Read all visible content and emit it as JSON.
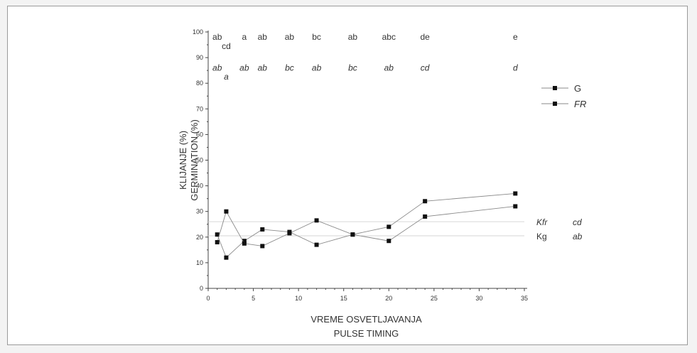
{
  "chart_data": {
    "type": "line",
    "xlabel_lines": [
      "VREME OSVETLJAVANJA",
      "PULSE TIMING"
    ],
    "ylabel_lines": [
      "KLIJANJE (%)",
      "GERMINATION (%)"
    ],
    "xlim": [
      0,
      35
    ],
    "ylim": [
      0,
      100
    ],
    "x_ticks": [
      0,
      5,
      10,
      15,
      20,
      25,
      30,
      35
    ],
    "y_ticks": [
      0,
      10,
      20,
      30,
      40,
      50,
      60,
      70,
      80,
      90,
      100
    ],
    "x": [
      1,
      2,
      4,
      6,
      9,
      12,
      16,
      20,
      24,
      34
    ],
    "series": [
      {
        "name": "G",
        "italic": false,
        "color": "#111111",
        "values": [
          21,
          12,
          18.5,
          23,
          22,
          17,
          21,
          24,
          34,
          37
        ]
      },
      {
        "name": "FR",
        "italic": true,
        "color": "#111111",
        "values": [
          18,
          30,
          17.5,
          16.5,
          21.5,
          26.5,
          21,
          18.5,
          28,
          32
        ]
      }
    ],
    "reference_lines": [
      {
        "label": "Kfr",
        "italic": true,
        "y": 26,
        "letter": "cd"
      },
      {
        "label": "Kg",
        "italic": false,
        "y": 20.5,
        "letter": "ab"
      }
    ],
    "significance_rows": [
      {
        "italic": false,
        "items": [
          {
            "x": 1,
            "text": "ab",
            "y": 98
          },
          {
            "x": 2,
            "text": "cd",
            "y": 94.5
          },
          {
            "x": 4,
            "text": "a",
            "y": 98
          },
          {
            "x": 6,
            "text": "ab",
            "y": 98
          },
          {
            "x": 9,
            "text": "ab",
            "y": 98
          },
          {
            "x": 12,
            "text": "bc",
            "y": 98
          },
          {
            "x": 16,
            "text": "ab",
            "y": 98
          },
          {
            "x": 20,
            "text": "abc",
            "y": 98
          },
          {
            "x": 24,
            "text": "de",
            "y": 98
          },
          {
            "x": 34,
            "text": "e",
            "y": 98
          }
        ]
      },
      {
        "italic": true,
        "items": [
          {
            "x": 1,
            "text": "ab",
            "y": 86
          },
          {
            "x": 2,
            "text": "a",
            "y": 82.5
          },
          {
            "x": 4,
            "text": "ab",
            "y": 86
          },
          {
            "x": 6,
            "text": "ab",
            "y": 86
          },
          {
            "x": 9,
            "text": "bc",
            "y": 86
          },
          {
            "x": 12,
            "text": "ab",
            "y": 86
          },
          {
            "x": 16,
            "text": "bc",
            "y": 86
          },
          {
            "x": 20,
            "text": "ab",
            "y": 86
          },
          {
            "x": 24,
            "text": "cd",
            "y": 86
          },
          {
            "x": 34,
            "text": "d",
            "y": 86
          }
        ]
      }
    ],
    "legend_position": "upper-right, outside plot",
    "grid": false
  }
}
